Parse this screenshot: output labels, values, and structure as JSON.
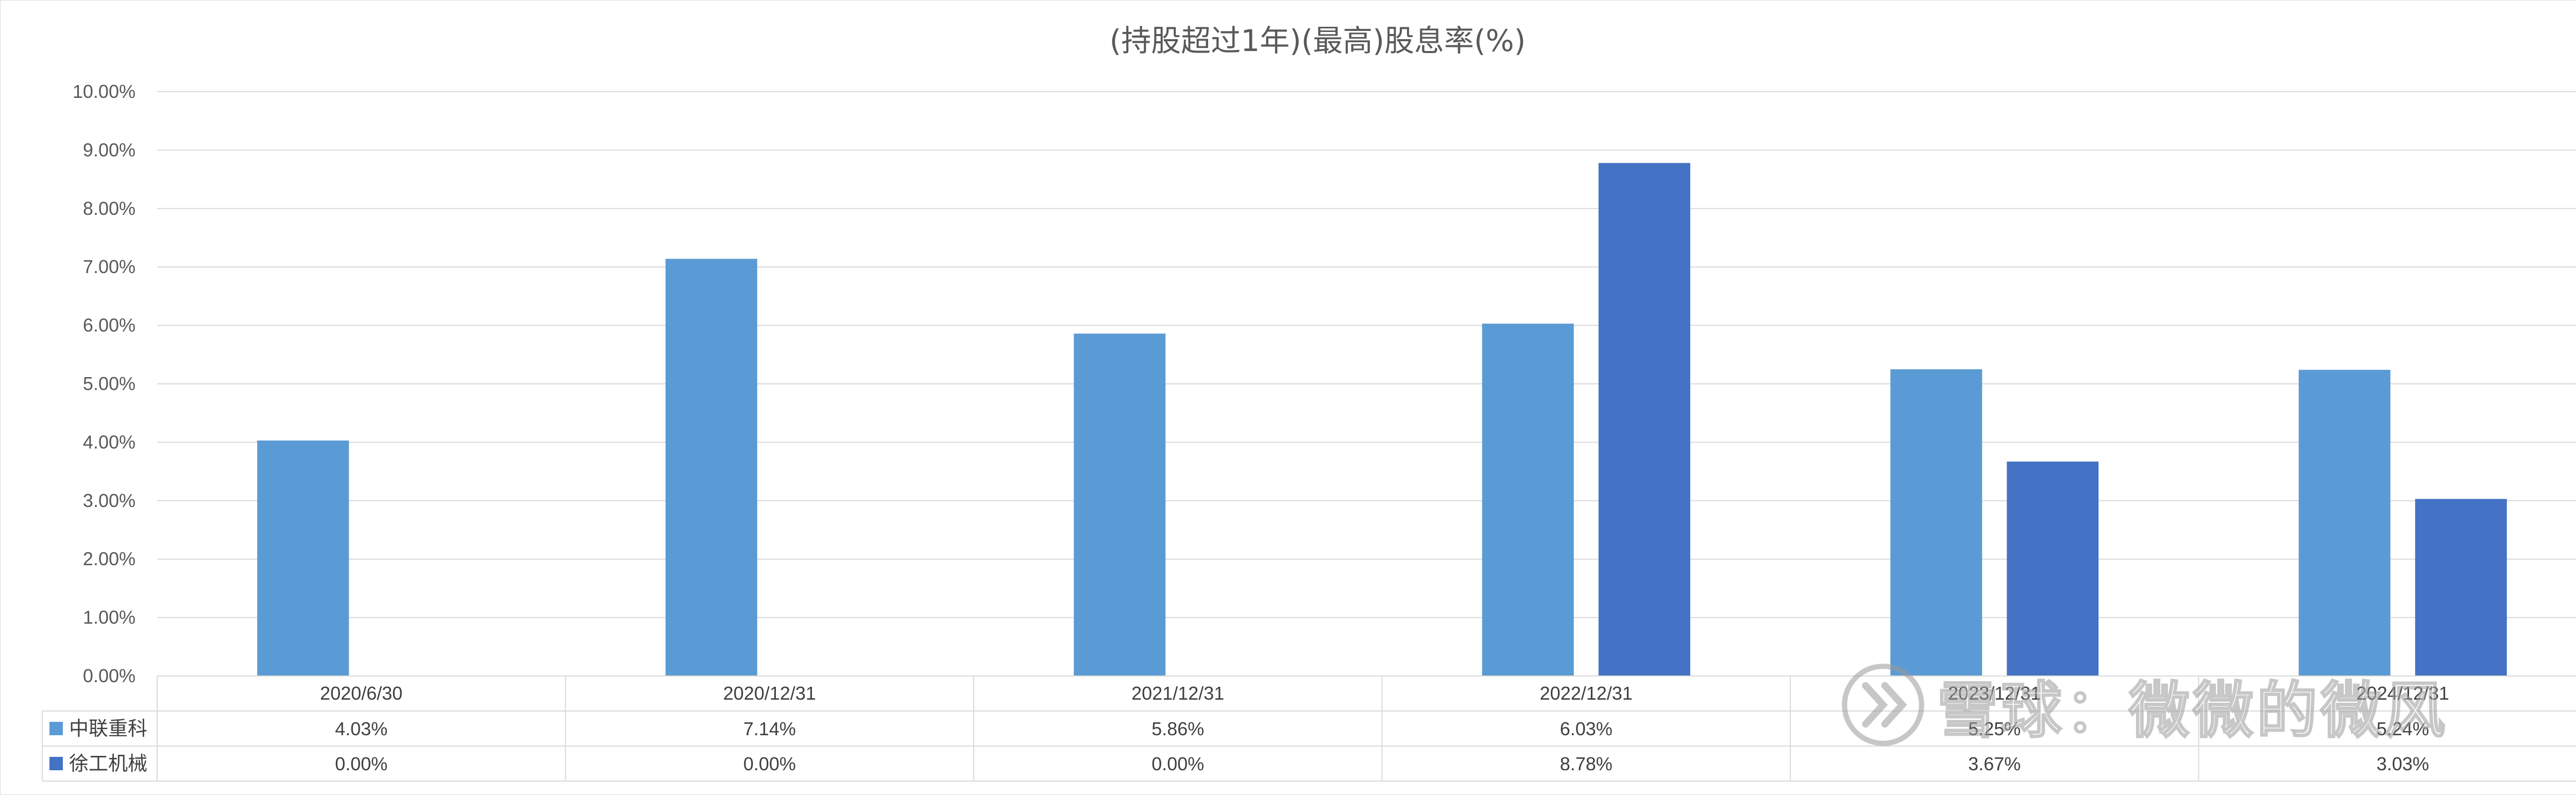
{
  "chart_data": {
    "type": "bar",
    "title": "(持股超过1年)(最高)股息率(%)",
    "categories": [
      "2020/6/30",
      "2020/12/31",
      "2021/12/31",
      "2022/12/31",
      "2023/12/31",
      "2024/12/31"
    ],
    "series": [
      {
        "name": "中联重科",
        "color": "#5b9bd5",
        "values": [
          4.03,
          7.14,
          5.86,
          6.03,
          5.25,
          5.24
        ],
        "labels": [
          "4.03%",
          "7.14%",
          "5.86%",
          "6.03%",
          "5.25%",
          "5.24%"
        ]
      },
      {
        "name": "徐工机械",
        "color": "#4472c4",
        "values": [
          0.0,
          0.0,
          0.0,
          8.78,
          3.67,
          3.03
        ],
        "labels": [
          "0.00%",
          "0.00%",
          "0.00%",
          "8.78%",
          "3.67%",
          "3.03%"
        ]
      }
    ],
    "ylim": [
      0,
      10
    ],
    "yticks": [
      "0.00%",
      "1.00%",
      "2.00%",
      "3.00%",
      "4.00%",
      "5.00%",
      "6.00%",
      "7.00%",
      "8.00%",
      "9.00%",
      "10.00%"
    ],
    "grid": true,
    "legend": "data-table-below"
  },
  "watermark": {
    "text": "雪球：微微的微风",
    "icon": "snowball-logo-icon"
  }
}
